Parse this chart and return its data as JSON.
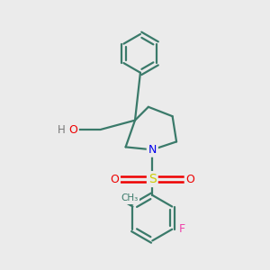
{
  "background_color": "#ebebeb",
  "atom_colors": {
    "C": "#3a7a6a",
    "N": "#0000ee",
    "O": "#ee0000",
    "S": "#cccc00",
    "F": "#ee44aa",
    "H": "#777777"
  },
  "bond_color": "#3a7a6a",
  "figsize": [
    3.0,
    3.0
  ],
  "dpi": 100
}
